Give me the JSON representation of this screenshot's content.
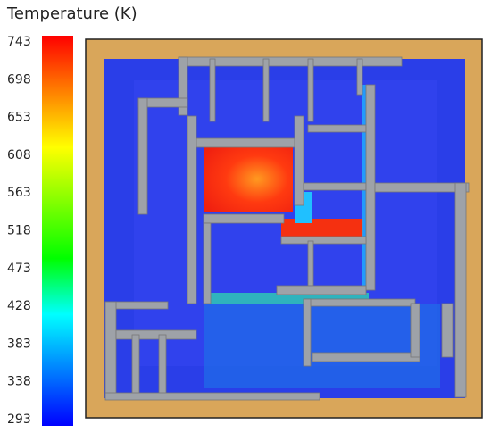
{
  "chart_data": {
    "type": "colorbar",
    "title": "Temperature (K)",
    "ylim": [
      293,
      743
    ],
    "yticks": [
      293,
      338,
      383,
      428,
      473,
      518,
      563,
      608,
      653,
      698,
      743
    ],
    "colormap": [
      "#0000ff",
      "#0080ff",
      "#00ffff",
      "#00ff00",
      "#80ff00",
      "#ffff00",
      "#ff8000",
      "#ff0000"
    ]
  }
}
